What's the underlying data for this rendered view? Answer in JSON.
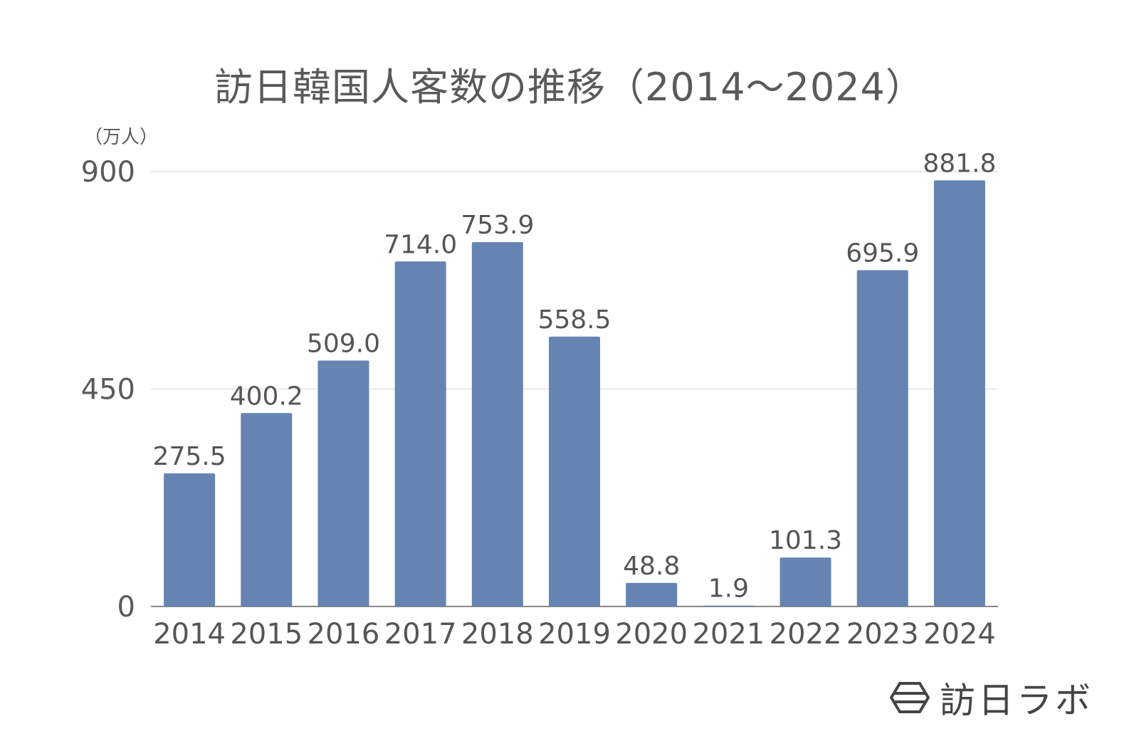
{
  "chart_data": {
    "type": "bar",
    "title": "訪日韓国人客数の推移（2014〜2024）",
    "unit_label": "（万人）",
    "categories": [
      "2014",
      "2015",
      "2016",
      "2017",
      "2018",
      "2019",
      "2020",
      "2021",
      "2022",
      "2023",
      "2024"
    ],
    "values": [
      275.5,
      400.2,
      509.0,
      714.0,
      753.9,
      558.5,
      48.8,
      1.9,
      101.3,
      695.9,
      881.8
    ],
    "value_labels": [
      "275.5",
      "400.2",
      "509.0",
      "714.0",
      "753.9",
      "558.5",
      "48.8",
      "1.9",
      "101.3",
      "695.9",
      "881.8"
    ],
    "ylim": [
      0,
      900
    ],
    "yticks": [
      "0",
      "450",
      "900"
    ],
    "grid": true,
    "bar_color": "#6684b1",
    "grid_color": "#e3e3e3"
  },
  "logo": {
    "text": "訪日ラボ",
    "icon": "hexagon-logo-icon"
  }
}
